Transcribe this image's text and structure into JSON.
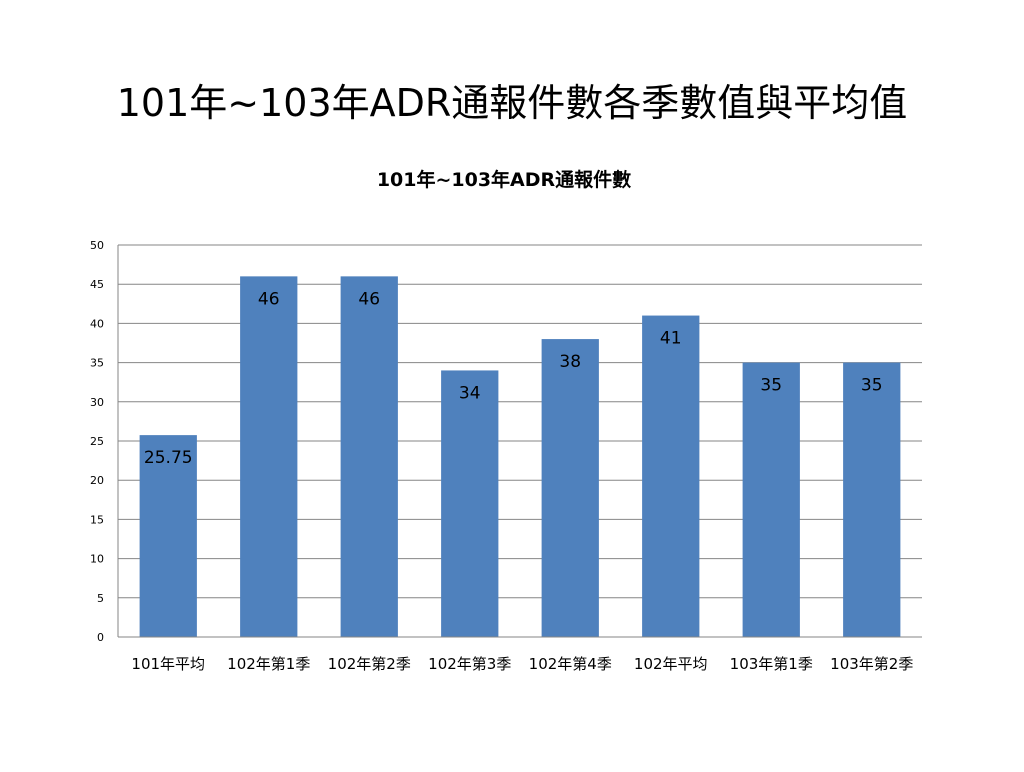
{
  "slide": {
    "title": "101年~103年ADR通報件數各季數值與平均值"
  },
  "chart_data": {
    "type": "bar",
    "title": "101年~103年ADR通報件數",
    "categories": [
      "101年平均",
      "102年第1季",
      "102年第2季",
      "102年第3季",
      "102年第4季",
      "102年平均",
      "103年第1季",
      "103年第2季"
    ],
    "values": [
      25.75,
      46,
      46,
      34,
      38,
      41,
      35,
      35
    ],
    "data_labels": [
      "25.75",
      "46",
      "46",
      "34",
      "38",
      "41",
      "35",
      "35"
    ],
    "xlabel": "",
    "ylabel": "",
    "ylim": [
      0,
      50
    ],
    "yticks": [
      0,
      5,
      10,
      15,
      20,
      25,
      30,
      35,
      40,
      45,
      50
    ],
    "grid": true,
    "legend": "none",
    "bar_color": "#4F81BD"
  }
}
